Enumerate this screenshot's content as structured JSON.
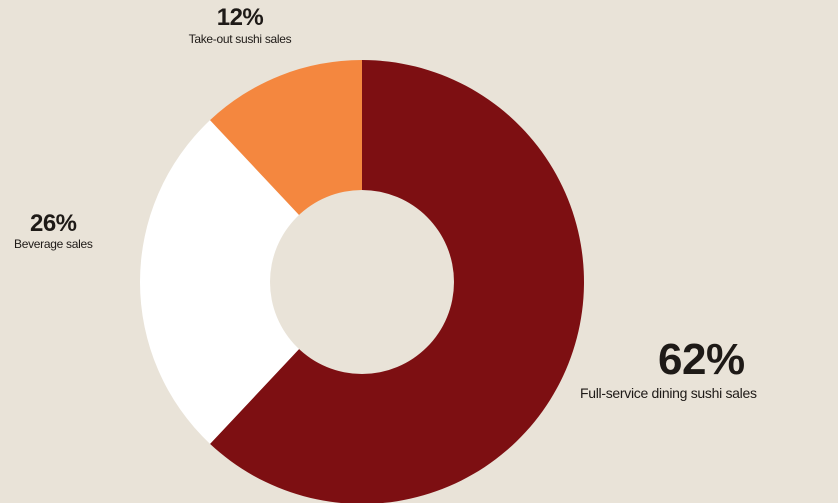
{
  "chart_data": {
    "type": "pie",
    "variant": "donut",
    "slices": [
      {
        "label_pct": "62%",
        "value": 62,
        "label": "Full-service dining sushi sales",
        "color": "#7d0f12"
      },
      {
        "label_pct": "26%",
        "value": 26,
        "label": "Beverage sales",
        "color": "#ffffff"
      },
      {
        "label_pct": "12%",
        "value": 12,
        "label": "Take-out sushi sales",
        "color": "#f4873f"
      }
    ],
    "start": "12 o'clock",
    "direction": "clockwise",
    "center_color": "#e9e3d8",
    "background": "#e9e3d8"
  }
}
